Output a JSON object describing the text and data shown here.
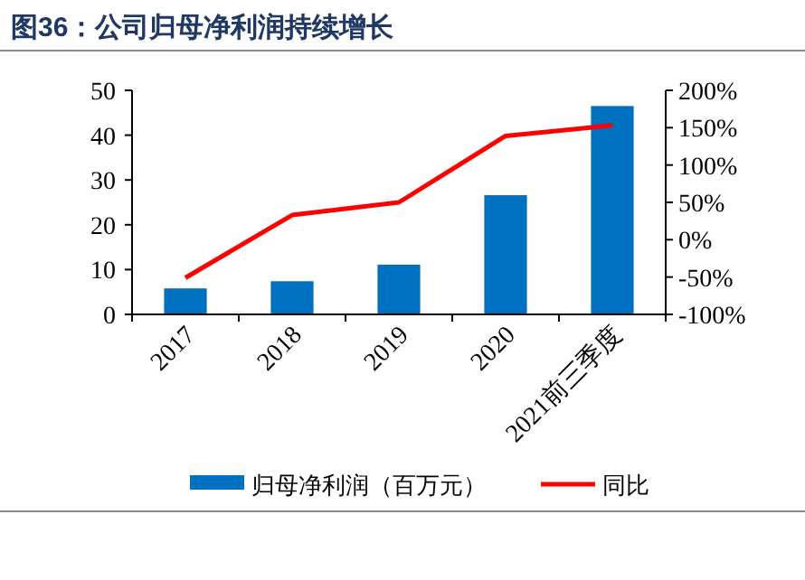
{
  "chart_data": {
    "type": "bar",
    "title": "图36：公司归母净利润持续增长",
    "categories": [
      "2017",
      "2018",
      "2019",
      "2020",
      "2021前三季度"
    ],
    "series": [
      {
        "name": "归母净利润（百万元）",
        "color": "#0070c0",
        "values": [
          5.8,
          7.4,
          11.1,
          26.6,
          46.5
        ]
      },
      {
        "name": "同比",
        "type": "line",
        "axis": "y2",
        "color": "#ff0000",
        "values": [
          -51,
          33,
          50,
          139,
          153
        ]
      }
    ],
    "ylim": [
      0,
      50
    ],
    "yticks": [
      0,
      10,
      20,
      30,
      40,
      50
    ],
    "y2lim": [
      -100,
      200
    ],
    "y2ticks": [
      {
        "value": -100,
        "label": "-100%"
      },
      {
        "value": -50,
        "label": "-50%"
      },
      {
        "value": 0,
        "label": "0%"
      },
      {
        "value": 50,
        "label": "50%"
      },
      {
        "value": 100,
        "label": "100%"
      },
      {
        "value": 150,
        "label": "150%"
      },
      {
        "value": 200,
        "label": "200%"
      }
    ],
    "legend": "bottom",
    "grid": false
  }
}
